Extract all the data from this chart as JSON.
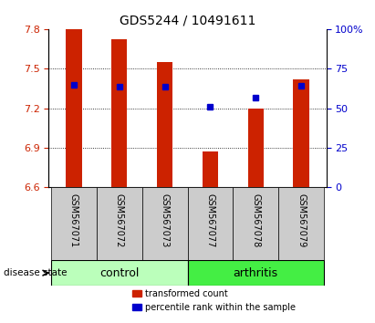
{
  "title": "GDS5244 / 10491611",
  "samples": [
    "GSM567071",
    "GSM567072",
    "GSM567073",
    "GSM567077",
    "GSM567078",
    "GSM567079"
  ],
  "bar_values": [
    7.8,
    7.72,
    7.55,
    6.87,
    7.2,
    7.42
  ],
  "bar_bottom": 6.6,
  "percentile_values": [
    7.38,
    7.36,
    7.36,
    7.21,
    7.28,
    7.37
  ],
  "left_ylim": [
    6.6,
    7.8
  ],
  "right_ylim": [
    0,
    100
  ],
  "left_yticks": [
    6.6,
    6.9,
    7.2,
    7.5,
    7.8
  ],
  "right_yticks": [
    0,
    25,
    50,
    75,
    100
  ],
  "bar_color": "#cc2200",
  "percentile_color": "#0000cc",
  "control_color": "#bbffbb",
  "arthritis_color": "#44ee44",
  "xlabel_area_color": "#cccccc",
  "title_fontsize": 10,
  "bar_width": 0.35
}
